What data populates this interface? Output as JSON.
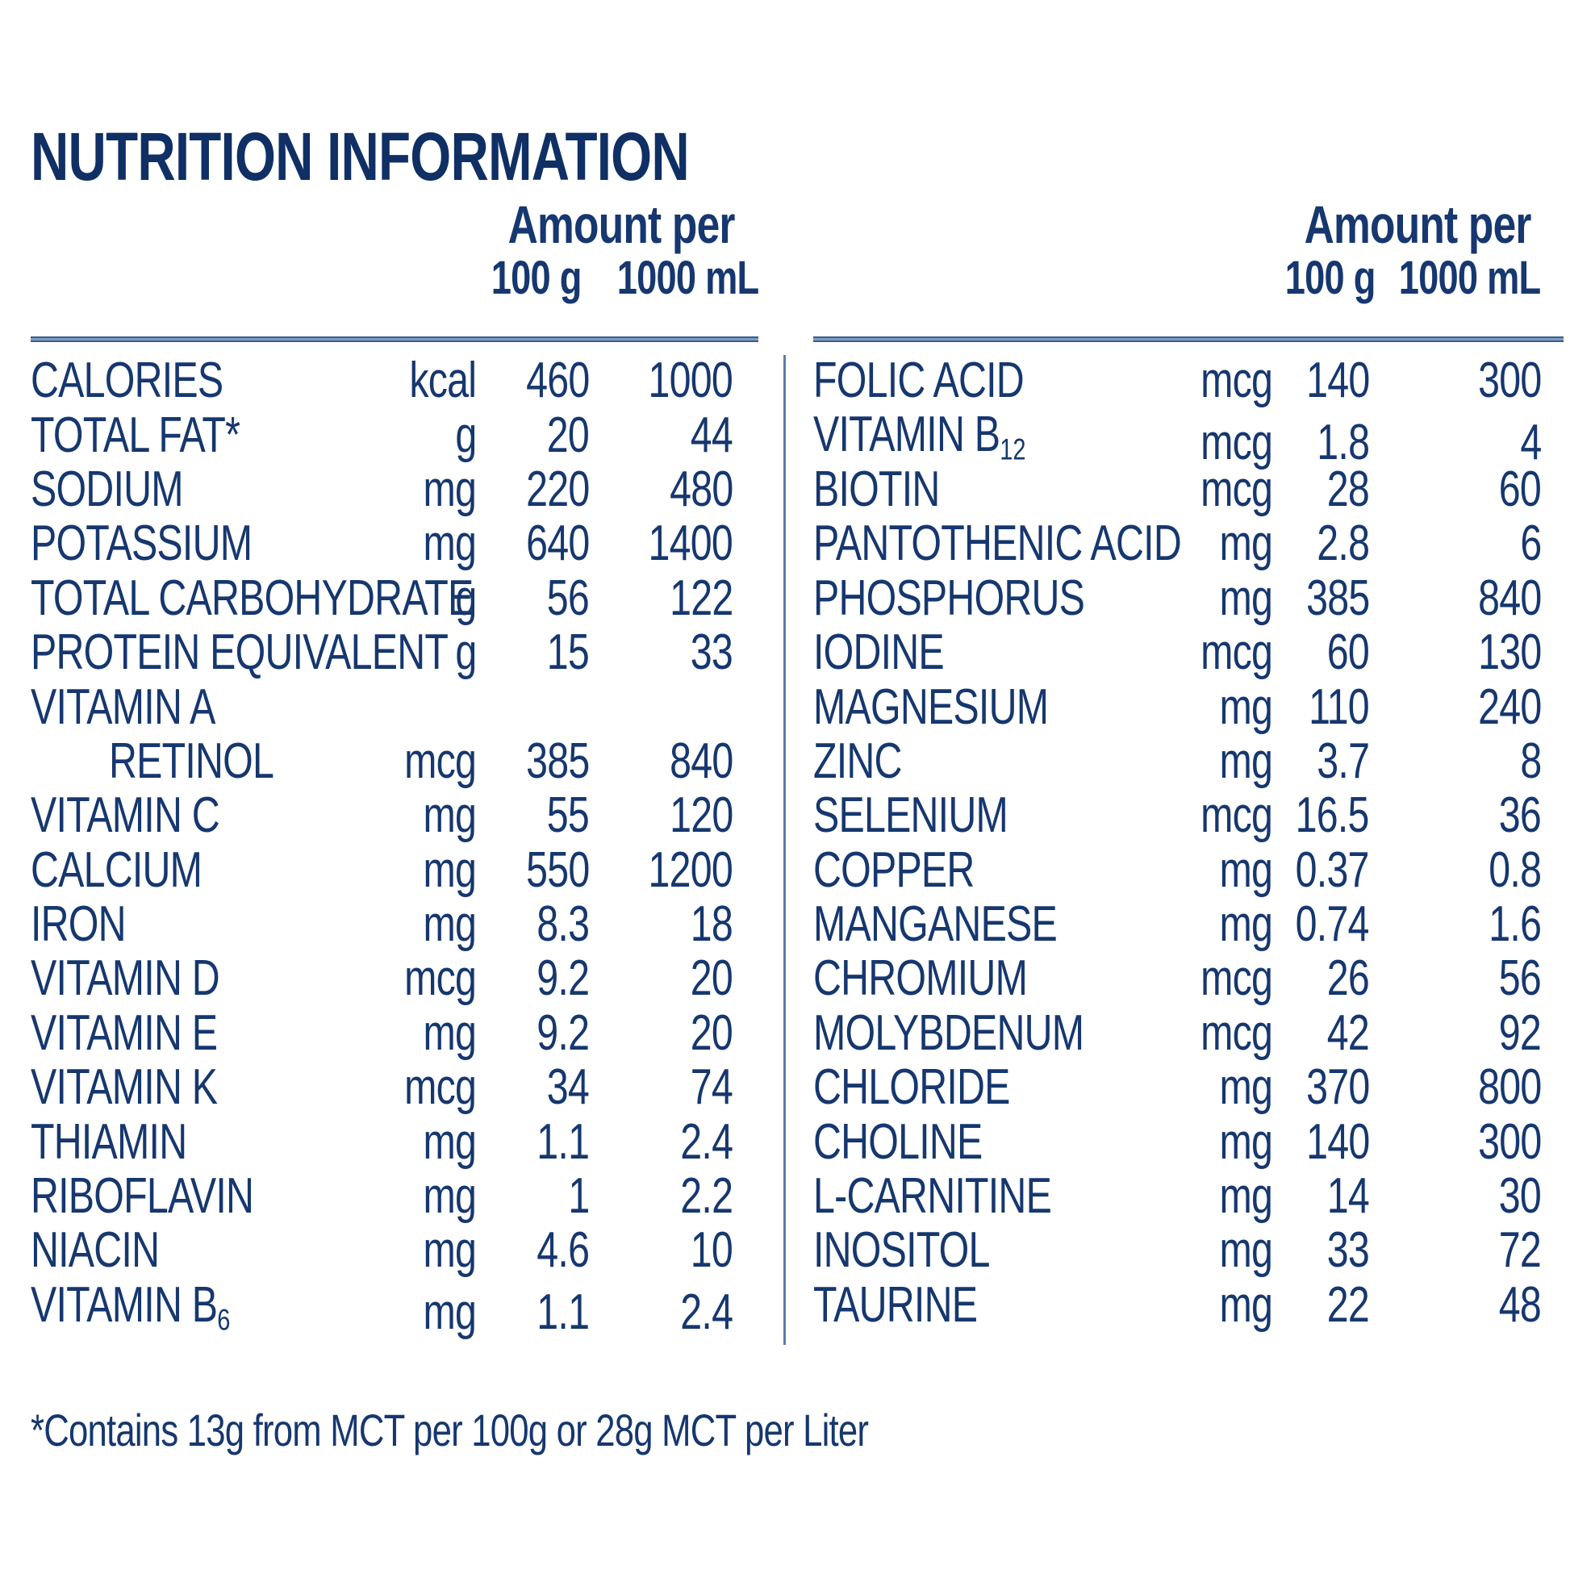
{
  "title": "NUTRITION INFORMATION",
  "footnote": "*Contains 13g from MCT per 100g or 28g MCT per Liter",
  "colors": {
    "text": "#16376f",
    "title": "#0f2f65",
    "rule": "#5b7da6"
  },
  "left_table": {
    "header": {
      "amount_per": "Amount per",
      "col_100g": "100 g",
      "col_1000ml": "1000 mL"
    },
    "rows": [
      {
        "name": "CALORIES",
        "unit": "kcal",
        "per_100g": "460",
        "per_1000ml": "1000"
      },
      {
        "name": "TOTAL FAT*",
        "unit": "g",
        "per_100g": "20",
        "per_1000ml": "44"
      },
      {
        "name": "SODIUM",
        "unit": "mg",
        "per_100g": "220",
        "per_1000ml": "480"
      },
      {
        "name": "POTASSIUM",
        "unit": "mg",
        "per_100g": "640",
        "per_1000ml": "1400"
      },
      {
        "name": "TOTAL CARBOHYDRATE",
        "unit": "g",
        "per_100g": "56",
        "per_1000ml": "122"
      },
      {
        "name": "PROTEIN EQUIVALENT",
        "unit": "g",
        "per_100g": "15",
        "per_1000ml": "33"
      },
      {
        "name": "VITAMIN A",
        "unit": "",
        "per_100g": "",
        "per_1000ml": ""
      },
      {
        "name": "RETINOL",
        "indent": true,
        "unit": "mcg",
        "per_100g": "385",
        "per_1000ml": "840"
      },
      {
        "name": "VITAMIN C",
        "unit": "mg",
        "per_100g": "55",
        "per_1000ml": "120"
      },
      {
        "name": "CALCIUM",
        "unit": "mg",
        "per_100g": "550",
        "per_1000ml": "1200"
      },
      {
        "name": "IRON",
        "unit": "mg",
        "per_100g": "8.3",
        "per_1000ml": "18"
      },
      {
        "name": "VITAMIN D",
        "unit": "mcg",
        "per_100g": "9.2",
        "per_1000ml": "20"
      },
      {
        "name": "VITAMIN E",
        "unit": "mg",
        "per_100g": "9.2",
        "per_1000ml": "20"
      },
      {
        "name": "VITAMIN K",
        "unit": "mcg",
        "per_100g": "34",
        "per_1000ml": "74"
      },
      {
        "name": "THIAMIN",
        "unit": "mg",
        "per_100g": "1.1",
        "per_1000ml": "2.4"
      },
      {
        "name": "RIBOFLAVIN",
        "unit": "mg",
        "per_100g": "1",
        "per_1000ml": "2.2"
      },
      {
        "name": "NIACIN",
        "unit": "mg",
        "per_100g": "4.6",
        "per_1000ml": "10"
      },
      {
        "name": "VITAMIN B",
        "sub": "6",
        "unit": "mg",
        "per_100g": "1.1",
        "per_1000ml": "2.4"
      }
    ]
  },
  "right_table": {
    "header": {
      "amount_per": "Amount per",
      "col_100g": "100 g",
      "col_1000ml": "1000 mL"
    },
    "rows": [
      {
        "name": "FOLIC ACID",
        "unit": "mcg",
        "per_100g": "140",
        "per_1000ml": "300"
      },
      {
        "name": "VITAMIN B",
        "sub": "12",
        "unit": "mcg",
        "per_100g": "1.8",
        "per_1000ml": "4"
      },
      {
        "name": "BIOTIN",
        "unit": "mcg",
        "per_100g": "28",
        "per_1000ml": "60"
      },
      {
        "name": "PANTOTHENIC ACID",
        "unit": "mg",
        "per_100g": "2.8",
        "per_1000ml": "6"
      },
      {
        "name": "PHOSPHORUS",
        "unit": "mg",
        "per_100g": "385",
        "per_1000ml": "840"
      },
      {
        "name": "IODINE",
        "unit": "mcg",
        "per_100g": "60",
        "per_1000ml": "130"
      },
      {
        "name": "MAGNESIUM",
        "unit": "mg",
        "per_100g": "110",
        "per_1000ml": "240"
      },
      {
        "name": "ZINC",
        "unit": "mg",
        "per_100g": "3.7",
        "per_1000ml": "8"
      },
      {
        "name": "SELENIUM",
        "unit": "mcg",
        "per_100g": "16.5",
        "per_1000ml": "36"
      },
      {
        "name": "COPPER",
        "unit": "mg",
        "per_100g": "0.37",
        "per_1000ml": "0.8"
      },
      {
        "name": "MANGANESE",
        "unit": "mg",
        "per_100g": "0.74",
        "per_1000ml": "1.6"
      },
      {
        "name": "CHROMIUM",
        "unit": "mcg",
        "per_100g": "26",
        "per_1000ml": "56"
      },
      {
        "name": "MOLYBDENUM",
        "unit": "mcg",
        "per_100g": "42",
        "per_1000ml": "92"
      },
      {
        "name": "CHLORIDE",
        "unit": "mg",
        "per_100g": "370",
        "per_1000ml": "800"
      },
      {
        "name": "CHOLINE",
        "unit": "mg",
        "per_100g": "140",
        "per_1000ml": "300"
      },
      {
        "name": "L-CARNITINE",
        "unit": "mg",
        "per_100g": "14",
        "per_1000ml": "30"
      },
      {
        "name": "INOSITOL",
        "unit": "mg",
        "per_100g": "33",
        "per_1000ml": "72"
      },
      {
        "name": "TAURINE",
        "unit": "mg",
        "per_100g": "22",
        "per_1000ml": "48"
      }
    ]
  }
}
